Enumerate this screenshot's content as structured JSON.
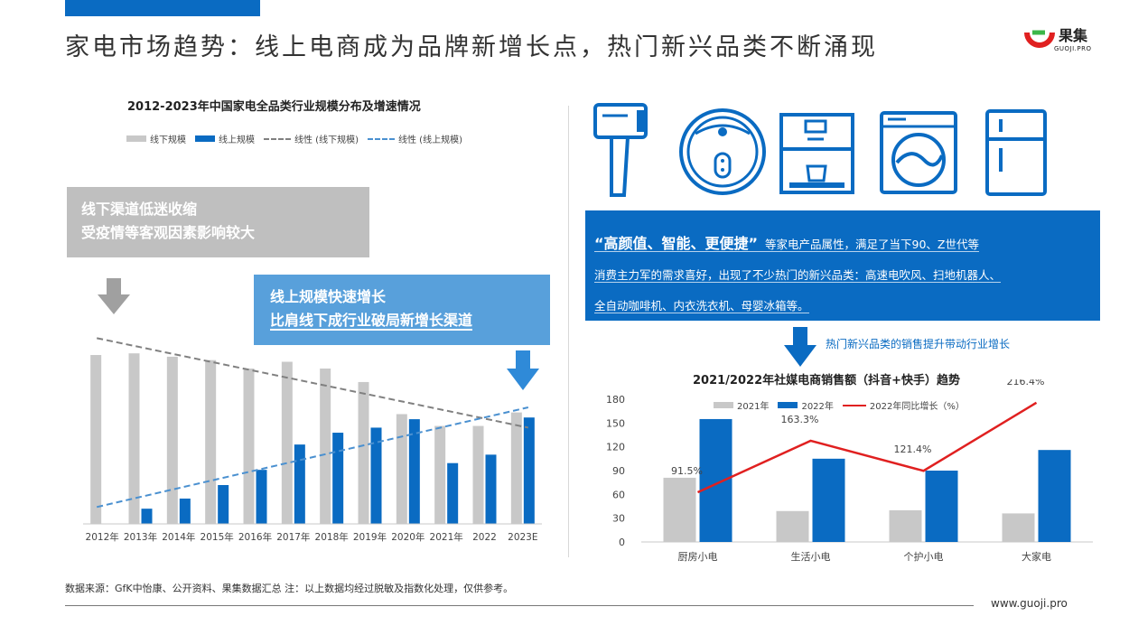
{
  "header": {
    "title": "家电市场趋势：线上电商成为品牌新增长点，热门新兴品类不断涌现",
    "logo_text": "果集",
    "logo_sub": "GUOJI.PRO"
  },
  "left_panel": {
    "callout_gray_line1": "线下渠道低迷收缩",
    "callout_gray_line2": "受疫情等客观因素影响较大",
    "callout_blue_line1": "线上规模快速增长",
    "callout_blue_line2": "比肩线下成行业破局新增长渠道"
  },
  "right_panel": {
    "info_highlight": "“高颜值、智能、更便捷”",
    "info_line1": "等家电产品属性，满足了当下90、Z世代等",
    "info_line2": "消费主力军的需求喜好，出现了不少热门的新兴品类：高速电吹风、扫地机器人、",
    "info_line3": "全自动咖啡机、内衣洗衣机、母婴冰箱等。",
    "arrow_note": "热门新兴品类的销售提升带动行业增长"
  },
  "footer": {
    "source": "数据来源：GfK中怡康、公开资料、果集数据汇总    注：以上数据均经过脱敏及指数化处理，仅供参考。",
    "url": "www.guoji.pro"
  },
  "icons": [
    "hair-dryer-icon",
    "robot-vacuum-icon",
    "coffee-machine-icon",
    "washing-machine-icon",
    "refrigerator-icon"
  ],
  "colors": {
    "blue": "#0a6bc2",
    "gray": "#c8c8c8",
    "red": "#e02020",
    "trend_gray": "#808080",
    "trend_blue": "#4a90d0"
  },
  "chart_data": [
    {
      "type": "bar",
      "title": "2012-2023年中国家电全品类行业规模分布及增速情况",
      "categories": [
        "2012年",
        "2013年",
        "2014年",
        "2015年",
        "2016年",
        "2017年",
        "2018年",
        "2019年",
        "2020年",
        "2021年",
        "2022",
        "2023E"
      ],
      "series": [
        {
          "name": "线下规模",
          "values": [
            100,
            101,
            99,
            97,
            92,
            96,
            92,
            84,
            65,
            58,
            58,
            66
          ]
        },
        {
          "name": "线上规模",
          "values": [
            0,
            9,
            15,
            23,
            32,
            47,
            54,
            57,
            62,
            36,
            41,
            63
          ]
        }
      ],
      "trendlines": [
        {
          "name": "线性 (线下规模)",
          "start": 110,
          "end": 57
        },
        {
          "name": "线性 (线上规模)",
          "start": 10,
          "end": 69
        }
      ],
      "ylim": [
        0,
        115
      ],
      "grid": false,
      "legend": "top"
    },
    {
      "type": "bar",
      "title": "2021/2022年社媒电商销售额（抖音+快手）趋势",
      "categories": [
        "厨房小电",
        "生活小电",
        "个护小电",
        "大家电"
      ],
      "series": [
        {
          "name": "2021年",
          "values": [
            81,
            39,
            40,
            36
          ]
        },
        {
          "name": "2022年",
          "values": [
            155,
            105,
            90,
            116
          ]
        }
      ],
      "line_series": {
        "name": "2022年同比增长（%）",
        "values": [
          91.5,
          163.3,
          121.4,
          216.4
        ],
        "labels": [
          "91.5%",
          "163.3%",
          "121.4%",
          "216.4%"
        ]
      },
      "yticks": [
        "0",
        "30",
        "60",
        "90",
        "120",
        "150",
        "180"
      ],
      "ylim": [
        0,
        180
      ],
      "legend": "top"
    }
  ]
}
